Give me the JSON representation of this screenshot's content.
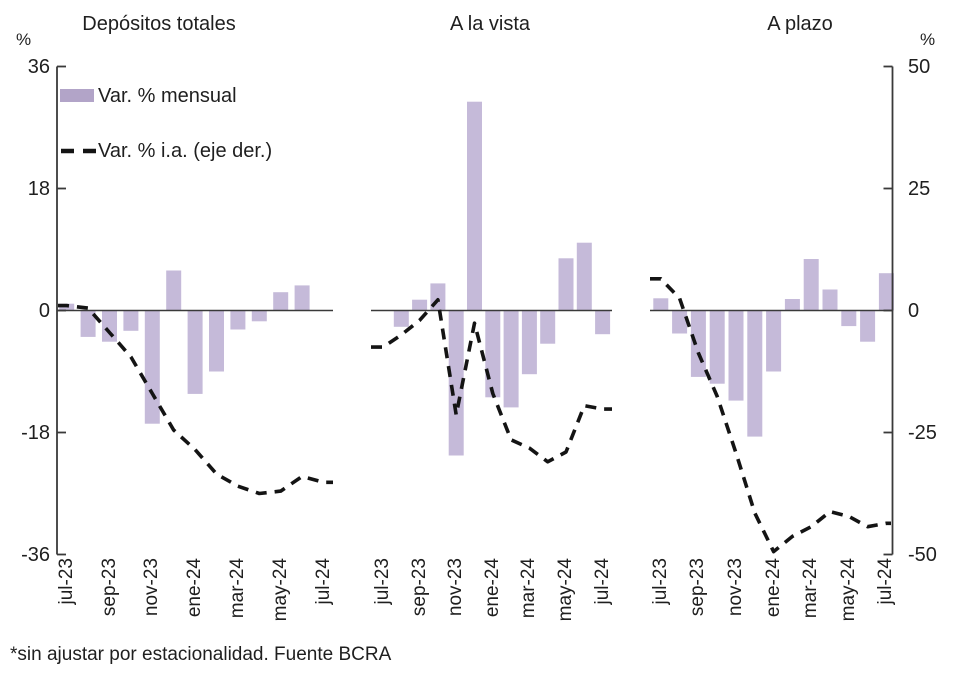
{
  "legend": {
    "bar_label": "Var. % mensual",
    "line_label": "Var. % i.a. (eje der.)"
  },
  "left_axis": {
    "unit": "%",
    "ticks": [
      36,
      18,
      0,
      -18,
      -36
    ]
  },
  "right_axis": {
    "unit": "%",
    "ticks": [
      50,
      25,
      0,
      -25,
      -50
    ]
  },
  "x_ticks_shown": [
    "jul-23",
    "sep-23",
    "nov-23",
    "ene-24",
    "mar-24",
    "may-24",
    "jul-24"
  ],
  "footnote": "*sin ajustar por estacionalidad. Fuente BCRA",
  "colors": {
    "bar": "#c5bad9",
    "bar_legend": "#b2a4c8",
    "line": "#141414",
    "axis": "#3a3a3a",
    "text": "#1f1f1f"
  },
  "chart_data": [
    {
      "type": "bar+line",
      "title": "Depósitos totales",
      "categories": [
        "jul-23",
        "ago-23",
        "sep-23",
        "oct-23",
        "nov-23",
        "dic-23",
        "ene-24",
        "feb-24",
        "mar-24",
        "abr-24",
        "may-24",
        "jun-24",
        "jul-24"
      ],
      "series": [
        {
          "name": "Var. % mensual",
          "type": "bar",
          "axis": "left",
          "values": [
            1.0,
            -3.9,
            -4.6,
            -3.0,
            -16.7,
            5.9,
            -12.3,
            -9.0,
            -2.8,
            -1.6,
            2.7,
            3.7,
            0
          ]
        },
        {
          "name": "Var. % i.a. (eje der.)",
          "type": "line",
          "axis": "right",
          "values": [
            1.0,
            0.5,
            -4.5,
            -9.5,
            -17.0,
            -24.5,
            -28.5,
            -33.5,
            -36.0,
            -37.5,
            -37.0,
            -34.0,
            -35.2
          ]
        }
      ],
      "left_ylim": [
        -36,
        36
      ],
      "right_ylim": [
        -50,
        50
      ]
    },
    {
      "type": "bar+line",
      "title": "A la vista",
      "categories": [
        "jul-23",
        "ago-23",
        "sep-23",
        "oct-23",
        "nov-23",
        "dic-23",
        "ene-24",
        "feb-24",
        "mar-24",
        "abr-24",
        "may-24",
        "jun-24",
        "jul-24"
      ],
      "series": [
        {
          "name": "Var. % mensual",
          "type": "bar",
          "axis": "left",
          "values": [
            0,
            -2.4,
            1.6,
            4.0,
            -21.4,
            30.8,
            -12.8,
            -14.3,
            -9.4,
            -4.9,
            7.7,
            10.0,
            -3.5
          ]
        },
        {
          "name": "Var. % i.a. (eje der.)",
          "type": "line",
          "axis": "right",
          "values": [
            -7.5,
            -5.0,
            -2.0,
            2.2,
            -21.4,
            -2.6,
            -17.0,
            -26.5,
            -28.2,
            -31.0,
            -29.0,
            -19.5,
            -20.2
          ]
        }
      ],
      "left_ylim": [
        -36,
        36
      ],
      "right_ylim": [
        -50,
        50
      ]
    },
    {
      "type": "bar+line",
      "title": "A plazo",
      "categories": [
        "jul-23",
        "ago-23",
        "sep-23",
        "oct-23",
        "nov-23",
        "dic-23",
        "ene-24",
        "feb-24",
        "mar-24",
        "abr-24",
        "may-24",
        "jun-24",
        "jul-24"
      ],
      "series": [
        {
          "name": "Var. % mensual",
          "type": "bar",
          "axis": "left",
          "values": [
            1.8,
            -3.4,
            -9.8,
            -10.8,
            -13.3,
            -18.6,
            -9.0,
            1.7,
            7.6,
            3.1,
            -2.3,
            -4.6,
            5.5
          ]
        },
        {
          "name": "Var. % i.a. (eje der.)",
          "type": "line",
          "axis": "right",
          "values": [
            6.5,
            2.5,
            -8.7,
            -17.6,
            -29.2,
            -41.5,
            -49.4,
            -46.3,
            -44.3,
            -41.2,
            -42.2,
            -44.3,
            -43.6
          ]
        }
      ],
      "left_ylim": [
        -36,
        36
      ],
      "right_ylim": [
        -50,
        50
      ]
    }
  ]
}
